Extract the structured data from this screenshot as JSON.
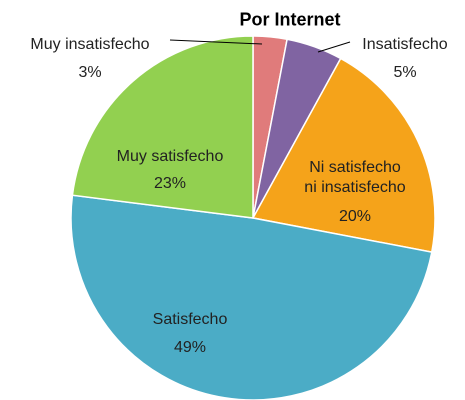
{
  "chart_data": {
    "type": "pie",
    "title": "Por Internet",
    "categories": [
      "Muy insatisfecho",
      "Insatisfecho",
      "Ni satisfecho ni insatisfecho",
      "Satisfecho",
      "Muy satisfecho"
    ],
    "values": [
      3,
      5,
      20,
      49,
      23
    ],
    "value_labels": [
      "3%",
      "5%",
      "20%",
      "49%",
      "23%"
    ],
    "colors": [
      "#e07b7b",
      "#8064a2",
      "#f5a31a",
      "#4bacc6",
      "#92d050"
    ]
  }
}
